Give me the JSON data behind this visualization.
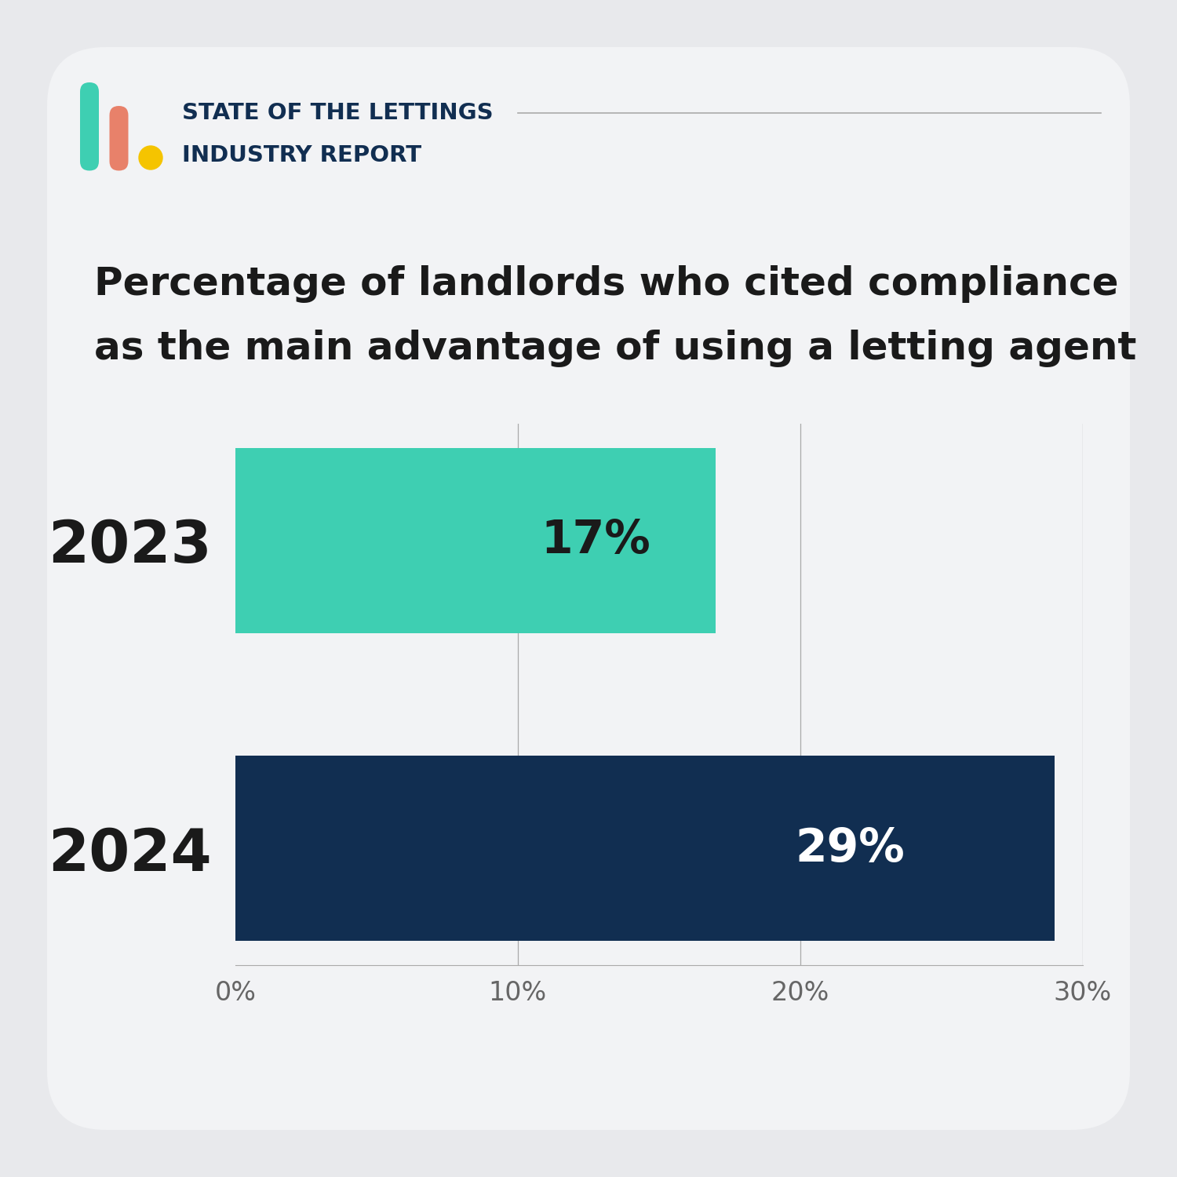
{
  "title_line1": "Percentage of landlords who cited compliance",
  "title_line2": "as the main advantage of using a letting agent",
  "categories": [
    "2024",
    "2023"
  ],
  "values": [
    29,
    17
  ],
  "bar_colors": [
    "#112E51",
    "#3ECFB2"
  ],
  "value_labels": [
    "29%",
    "17%"
  ],
  "label_colors": [
    "#ffffff",
    "#1a1a1a"
  ],
  "xlim": [
    0,
    30
  ],
  "xticks": [
    0,
    10,
    20,
    30
  ],
  "xticklabels": [
    "0%",
    "10%",
    "20%",
    "30%"
  ],
  "background_color": "#E8E9EC",
  "card_color": "#F2F3F5",
  "title_color": "#1a1a1a",
  "title_fontsize": 36,
  "ylabel_fontsize": 54,
  "value_fontsize": 42,
  "xtick_fontsize": 24,
  "header_line1": "STATE OF THE LETTINGS",
  "header_line2": "INDUSTRY REPORT",
  "header_color": "#112E51",
  "header_fontsize": 21,
  "accent_teal": "#3ECFB2",
  "accent_salmon": "#E8816A",
  "accent_yellow": "#F5C400"
}
